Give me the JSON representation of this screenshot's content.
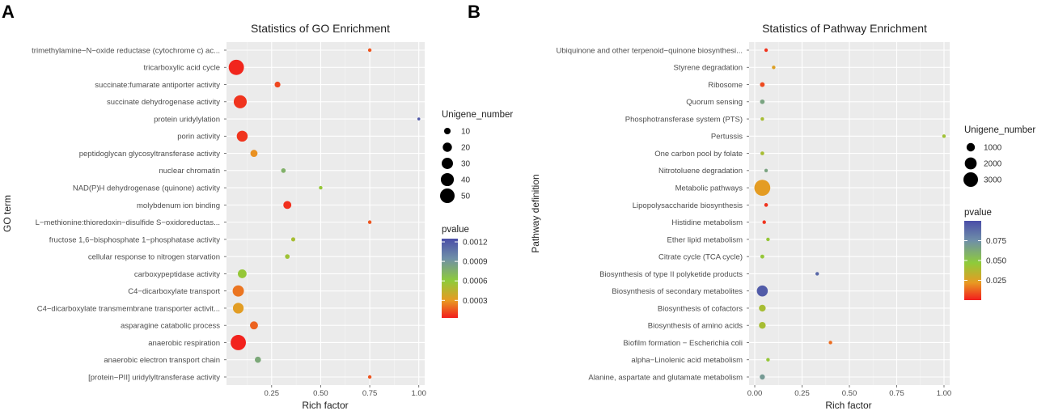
{
  "chart_data": [
    {
      "panel_label": "A",
      "type": "scatter",
      "title": "Statistics of GO Enrichment",
      "xlabel": "Rich factor",
      "ylabel": "GO term",
      "xlim": [
        0.02,
        1.03
      ],
      "xticks": [
        0.25,
        0.5,
        0.75,
        1.0
      ],
      "xtick_labels": [
        "0.25",
        "0.50",
        "0.75",
        "1.00"
      ],
      "categories": [
        "trimethylamine−N−oxide reductase (cytochrome c) ac...",
        "tricarboxylic acid cycle",
        "succinate:fumarate antiporter activity",
        "succinate dehydrogenase activity",
        "protein uridylylation",
        "porin activity",
        "peptidoglycan glycosyltransferase activity",
        "nuclear chromatin",
        "NAD(P)H dehydrogenase (quinone) activity",
        "molybdenum ion binding",
        "L−methionine:thioredoxin−disulfide S−oxidoreductas...",
        "fructose 1,6−bisphosphate 1−phosphatase activity",
        "cellular response to nitrogen starvation",
        "carboxypeptidase activity",
        "C4−dicarboxylate transport",
        "C4−dicarboxylate transmembrane transporter activit...",
        "asparagine catabolic process",
        "anaerobic respiration",
        "anaerobic electron transport chain",
        "[protein−PII] uridylyltransferase activity"
      ],
      "rich_factor": [
        0.75,
        0.07,
        0.28,
        0.09,
        1.0,
        0.1,
        0.16,
        0.31,
        0.5,
        0.33,
        0.75,
        0.36,
        0.33,
        0.1,
        0.08,
        0.08,
        0.16,
        0.08,
        0.18,
        0.75
      ],
      "unigene_number": [
        3,
        55,
        8,
        40,
        1,
        28,
        12,
        5,
        3,
        15,
        3,
        4,
        5,
        18,
        30,
        27,
        15,
        55,
        9,
        3
      ],
      "pvalue": [
        0.00015,
        5e-05,
        0.00012,
        8e-05,
        0.0012,
        8e-05,
        0.00028,
        0.00075,
        0.00058,
        7e-05,
        0.00015,
        0.00052,
        0.00055,
        0.00058,
        0.00022,
        0.00032,
        0.00018,
        4e-05,
        0.0008,
        0.00015
      ],
      "size_legend": {
        "title": "Unigene_number",
        "values": [
          10,
          20,
          30,
          40,
          50
        ],
        "labels": [
          "10",
          "20",
          "30",
          "40",
          "50"
        ]
      },
      "color_legend": {
        "title": "pvalue",
        "min": 3e-05,
        "max": 0.00125,
        "ticks": [
          0.0003,
          0.0006,
          0.0009,
          0.0012
        ],
        "labels": [
          "0.0003",
          "0.0006",
          "0.0009",
          "0.0012"
        ]
      }
    },
    {
      "panel_label": "B",
      "type": "scatter",
      "title": "Statistics of Pathway Enrichment",
      "xlabel": "Rich factor",
      "ylabel": "Pathway definition",
      "xlim": [
        -0.03,
        1.03
      ],
      "xticks": [
        0.0,
        0.25,
        0.5,
        0.75,
        1.0
      ],
      "xtick_labels": [
        "0.00",
        "0.25",
        "0.50",
        "0.75",
        "1.00"
      ],
      "categories": [
        "Ubiquinone and other terpenoid−quinone biosynthesi...",
        "Styrene degradation",
        "Ribosome",
        "Quorum sensing",
        "Phosphotransferase system (PTS)",
        "Pertussis",
        "One carbon pool by folate",
        "Nitrotoluene degradation",
        "Metabolic pathways",
        "Lipopolysaccharide biosynthesis",
        "Histidine metabolism",
        "Ether lipid metabolism",
        "Citrate cycle (TCA cycle)",
        "Biosynthesis of type II polyketide products",
        "Biosynthesis of secondary metabolites",
        "Biosynthesis of cofactors",
        "Biosynthesis of amino acids",
        "Biofilm formation − Escherichia coli",
        "alpha−Linolenic acid metabolism",
        "Alanine, aspartate and glutamate metabolism"
      ],
      "rich_factor": [
        0.06,
        0.1,
        0.04,
        0.04,
        0.04,
        1.0,
        0.04,
        0.06,
        0.04,
        0.06,
        0.05,
        0.07,
        0.04,
        0.33,
        0.04,
        0.04,
        0.04,
        0.4,
        0.07,
        0.04
      ],
      "unigene_number": [
        160,
        30,
        320,
        300,
        180,
        10,
        200,
        80,
        3600,
        200,
        180,
        70,
        220,
        40,
        1700,
        650,
        650,
        50,
        70,
        380
      ],
      "pvalue": [
        0.004,
        0.025,
        0.008,
        0.065,
        0.04,
        0.042,
        0.04,
        0.065,
        0.023,
        0.004,
        0.004,
        0.045,
        0.045,
        0.09,
        0.095,
        0.04,
        0.04,
        0.014,
        0.045,
        0.07
      ],
      "size_legend": {
        "title": "Unigene_number",
        "values": [
          1000,
          2000,
          3000
        ],
        "labels": [
          "1000",
          "2000",
          "3000"
        ]
      },
      "color_legend": {
        "title": "pvalue",
        "min": 0.0,
        "max": 0.1,
        "ticks": [
          0.025,
          0.05,
          0.075
        ],
        "labels": [
          "0.025",
          "0.050",
          "0.075"
        ]
      }
    }
  ]
}
